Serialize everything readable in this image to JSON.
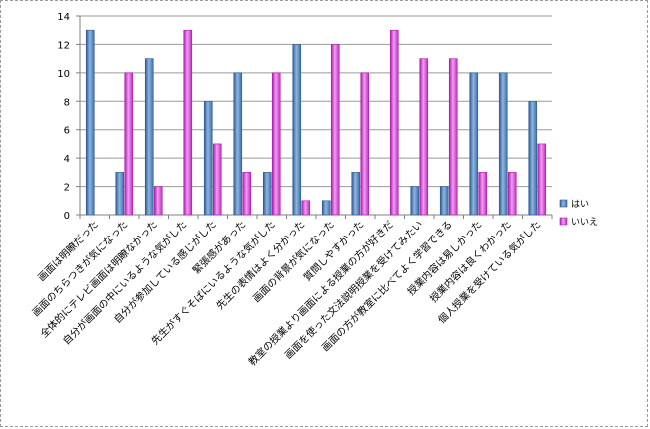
{
  "chart_data": {
    "type": "bar",
    "title": "",
    "xlabel": "",
    "ylabel": "",
    "ylim": [
      0,
      14
    ],
    "yticks": [
      0,
      2,
      4,
      6,
      8,
      10,
      12,
      14
    ],
    "grid": "horizontal",
    "legend_position": "right",
    "categories": [
      "画面は明瞭だった",
      "画面のちらつきが気になった",
      "全体的にテレビ画面は明瞭なかった",
      "自分が画面の中にいるような気がした",
      "自分が参加している感じがした",
      "緊張感があった",
      "先生がすぐそばにいるような気がした",
      "先生の表情はよく分かった",
      "画面の背景が気になった",
      "質問しやすかった",
      "教室の授業より画面による授業の方が好きだ",
      "画面を使った文法説明授業を受けてみたい",
      "画面の方が教室に比べてよく学習できる",
      "授業内容は易しかった",
      "授業内容は良くわかった",
      "個人授業を受けている気がした"
    ],
    "series": [
      {
        "name": "はい",
        "color": "#4F81BD",
        "values": [
          13,
          3,
          11,
          0,
          8,
          10,
          3,
          12,
          1,
          3,
          0,
          2,
          2,
          10,
          10,
          8
        ]
      },
      {
        "name": "いいえ",
        "color": "#E040E0",
        "values": [
          0,
          10,
          2,
          13,
          5,
          3,
          10,
          1,
          12,
          10,
          13,
          11,
          11,
          3,
          3,
          5
        ]
      }
    ]
  }
}
